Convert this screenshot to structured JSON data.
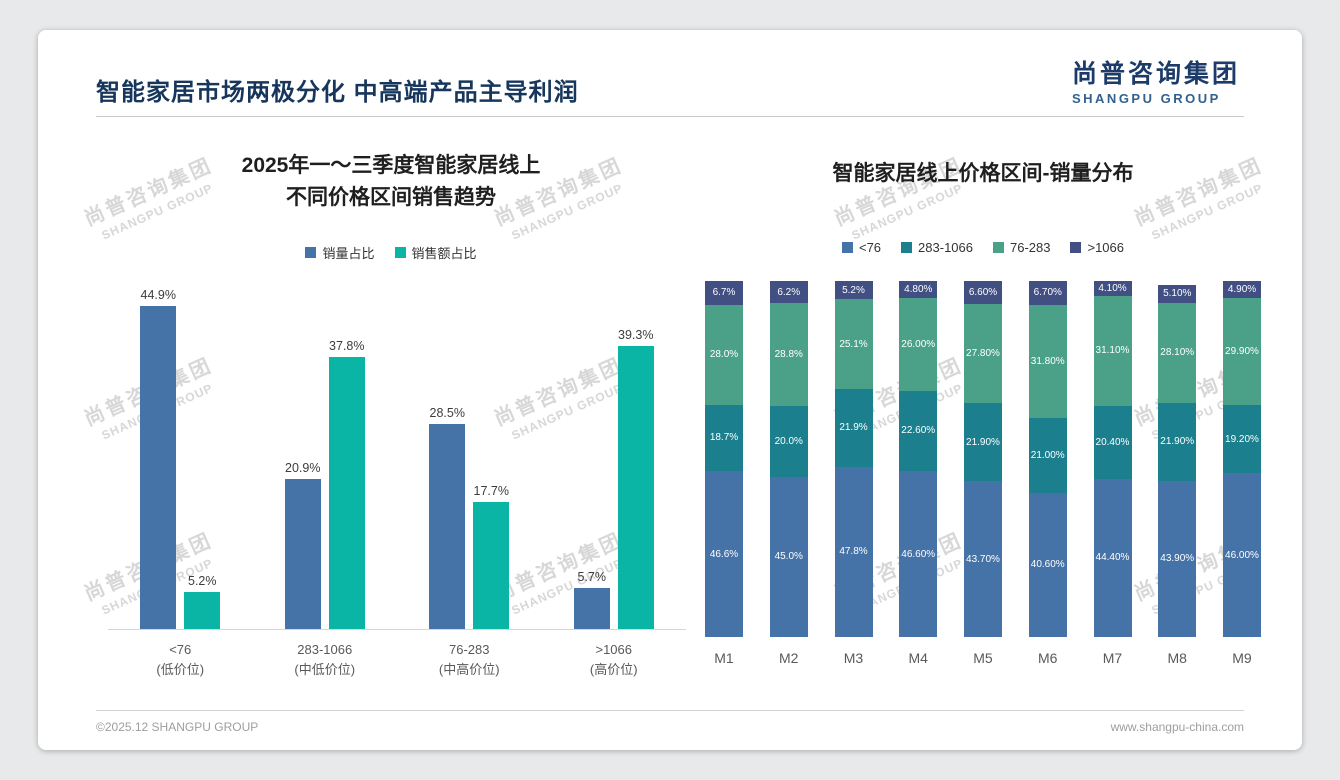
{
  "slide": {
    "title": "智能家居市场两极分化 中高端产品主导利润",
    "logo": {
      "cn": "尚普咨询集团",
      "en": "SHANGPU GROUP"
    },
    "watermark": {
      "cn": "尚普咨询集团",
      "en": "SHANGPU GROUP"
    },
    "footer": {
      "left": "©2025.12 SHANGPU GROUP",
      "right": "www.shangpu-china.com"
    }
  },
  "chart_data": [
    {
      "type": "bar",
      "title": "2025年一～三季度智能家居线上 不同价格区间销售趋势",
      "title_lines": [
        "2025年一～三季度智能家居线上",
        "不同价格区间销售趋势"
      ],
      "categories": [
        [
          "<76",
          "(低价位)"
        ],
        [
          "283-1066",
          "(中低价位)"
        ],
        [
          "76-283",
          "(中高价位)"
        ],
        [
          ">1066",
          "(高价位)"
        ]
      ],
      "series": [
        {
          "name": "销量占比",
          "color": "#4572a7",
          "values": [
            44.9,
            20.9,
            28.5,
            5.7
          ],
          "labels": [
            "44.9%",
            "20.9%",
            "28.5%",
            "5.7%"
          ]
        },
        {
          "name": "销售额占比",
          "color": "#0ab5a5",
          "values": [
            5.2,
            37.8,
            17.7,
            39.3
          ],
          "labels": [
            "5.2%",
            "37.8%",
            "17.7%",
            "39.3%"
          ]
        }
      ],
      "ylim": [
        0,
        50
      ],
      "unit": "%",
      "grid": false,
      "legend_position": "top"
    },
    {
      "type": "bar",
      "subtype": "stacked-100",
      "title": "智能家居线上价格区间-销量分布",
      "categories": [
        "M1",
        "M2",
        "M3",
        "M4",
        "M5",
        "M6",
        "M7",
        "M8",
        "M9"
      ],
      "series": [
        {
          "name": "<76",
          "color": "#4572a7",
          "values": [
            46.6,
            45.0,
            47.8,
            46.6,
            43.7,
            40.6,
            44.4,
            43.9,
            46.0
          ],
          "labels": [
            "46.6%",
            "45.0%",
            "47.8%",
            "46.60%",
            "43.70%",
            "40.60%",
            "44.40%",
            "43.90%",
            "46.00%"
          ]
        },
        {
          "name": "283-1066",
          "color": "#1b7f8e",
          "values": [
            18.7,
            20.0,
            21.9,
            22.6,
            21.9,
            21.0,
            20.4,
            21.9,
            19.2
          ],
          "labels": [
            "18.7%",
            "20.0%",
            "21.9%",
            "22.60%",
            "21.90%",
            "21.00%",
            "20.40%",
            "21.90%",
            "19.20%"
          ]
        },
        {
          "name": "76-283",
          "color": "#4ba188",
          "values": [
            28.0,
            28.8,
            25.1,
            26.0,
            27.8,
            31.8,
            31.1,
            28.1,
            29.9
          ],
          "labels": [
            "28.0%",
            "28.8%",
            "25.1%",
            "26.00%",
            "27.80%",
            "31.80%",
            "31.10%",
            "28.10%",
            "29.90%"
          ]
        },
        {
          "name": ">1066",
          "color": "#414f82",
          "values": [
            6.7,
            6.2,
            5.2,
            4.8,
            6.6,
            6.7,
            4.1,
            5.1,
            4.9
          ],
          "labels": [
            "6.7%",
            "6.2%",
            "5.2%",
            "4.80%",
            "6.60%",
            "6.70%",
            "4.10%",
            "5.10%",
            "4.90%"
          ]
        }
      ],
      "ylim": [
        0,
        100
      ],
      "unit": "%",
      "grid": false,
      "stack_order": "first-series-bottom",
      "legend_position": "top"
    }
  ]
}
